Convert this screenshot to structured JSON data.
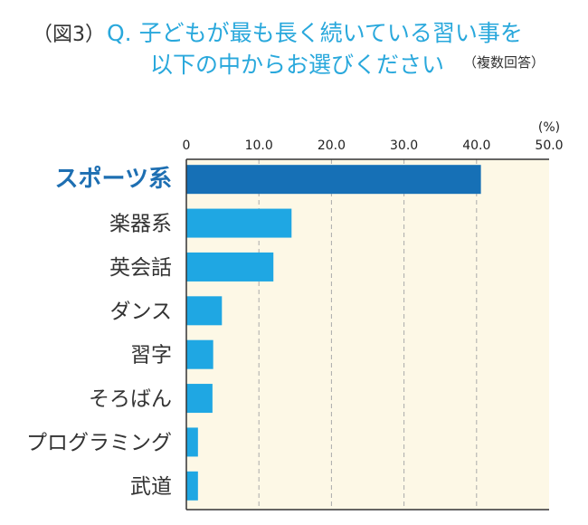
{
  "header": {
    "fig_label": "（図3）",
    "title_line1": "Q. 子どもが最も長く続いている習い事を",
    "title_line2": "以下の中からお選びください",
    "note": "（複数回答）"
  },
  "chart_data": {
    "type": "bar",
    "orientation": "horizontal",
    "categories": [
      "スポーツ系",
      "楽器系",
      "英会話",
      "ダンス",
      "習字",
      "そろばん",
      "プログラミング",
      "武道"
    ],
    "values": [
      40.6,
      14.5,
      12.0,
      4.9,
      3.7,
      3.6,
      1.6,
      1.6
    ],
    "highlight": "スポーツ系",
    "xlim": [
      0,
      50
    ],
    "x_ticks": [
      "0",
      "10.0",
      "20.0",
      "30.0",
      "40.0",
      "50.0"
    ],
    "unit": "(%)",
    "grid": "vertical dashed",
    "colors": {
      "plot_background": "#fdf8e6",
      "bar": "#1fa7e3",
      "bar_highlight": "#1670b6",
      "grid": "#aaaaaa",
      "axis": "#333333"
    }
  }
}
